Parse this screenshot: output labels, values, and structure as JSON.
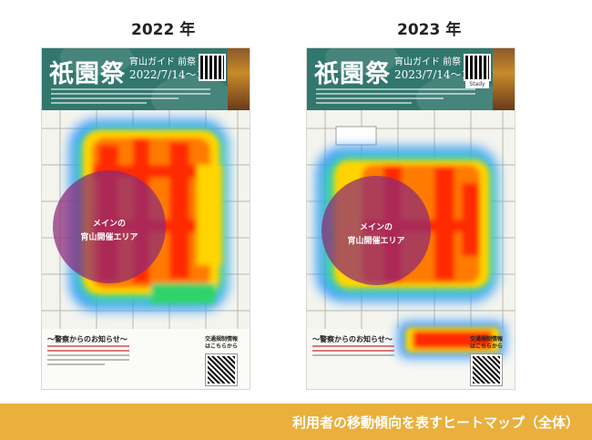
{
  "years": {
    "left": "2022 年",
    "right": "2023 年"
  },
  "panels": [
    {
      "key": "left",
      "poster": {
        "title": "祇園祭",
        "subtitle": "宵山ガイド 前祭",
        "date": "2022/7/14〜16",
        "qr_label": ""
      },
      "circle_label_line1": "メインの",
      "circle_label_line2": "宵山開催エリア",
      "notice_title": "〜警察からのお知らせ〜",
      "traffic_label_1": "交通規制情報",
      "traffic_label_2": "はこちらから"
    },
    {
      "key": "right",
      "poster": {
        "title": "祇園祭",
        "subtitle": "宵山ガイド 前祭",
        "date": "2023/7/14〜16",
        "qr_label": "Stady"
      },
      "circle_label_line1": "メインの",
      "circle_label_line2": "宵山開催エリア",
      "notice_title": "〜警察からのお知らせ〜",
      "traffic_label_1": "交通規制情報",
      "traffic_label_2": "はこちらから"
    }
  ],
  "caption": "利用者の移動傾向を表すヒートマップ（全体）",
  "colors": {
    "banner": "#eaaf3c",
    "header": "#31776e",
    "circle": "#8c2878",
    "heat_hot": "#ff2a00",
    "heat_warm": "#ffd400",
    "heat_cool": "#1e8cff"
  }
}
